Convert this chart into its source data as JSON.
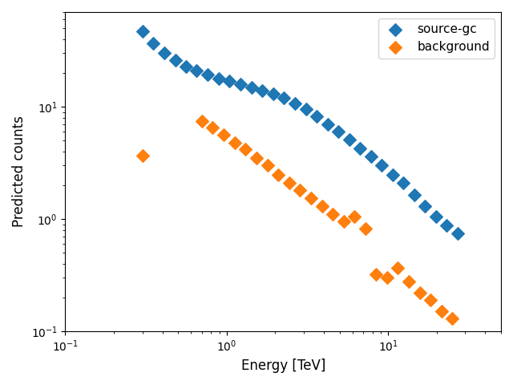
{
  "title": "",
  "xlabel": "Energy [TeV]",
  "ylabel": "Predicted counts",
  "source_gc_color": "#1f77b4",
  "background_color": "#ff7f0e",
  "source_gc_label": "source-gc",
  "background_label": "background",
  "marker": "D",
  "markersize": 4,
  "source_gc_x": [
    0.3,
    0.35,
    0.41,
    0.48,
    0.56,
    0.65,
    0.76,
    0.89,
    1.04,
    1.22,
    1.42,
    1.66,
    1.94,
    2.26,
    2.64,
    3.09,
    3.6,
    4.21,
    4.91,
    5.74,
    6.7,
    7.82,
    9.13,
    10.66,
    12.45,
    14.53,
    16.96,
    19.79,
    23.1,
    26.95
  ],
  "source_gc_y": [
    47.0,
    37.0,
    30.0,
    26.0,
    23.0,
    21.0,
    19.5,
    18.0,
    17.0,
    16.0,
    15.0,
    14.0,
    13.0,
    12.0,
    10.8,
    9.5,
    8.2,
    7.0,
    6.0,
    5.1,
    4.3,
    3.6,
    3.0,
    2.5,
    2.1,
    1.65,
    1.3,
    1.05,
    0.88,
    0.75
  ],
  "background_x": [
    0.3,
    0.7,
    0.82,
    0.96,
    1.12,
    1.31,
    1.53,
    1.79,
    2.09,
    2.44,
    2.85,
    3.33,
    3.89,
    4.54,
    5.3,
    6.19,
    7.23,
    8.44,
    9.85,
    11.5,
    13.42,
    15.67,
    18.29,
    21.35,
    24.92
  ],
  "background_y": [
    3.7,
    7.5,
    6.5,
    5.6,
    4.8,
    4.2,
    3.5,
    3.0,
    2.5,
    2.1,
    1.8,
    1.55,
    1.3,
    1.1,
    0.95,
    1.05,
    0.82,
    0.32,
    0.3,
    0.37,
    0.28,
    0.22,
    0.19,
    0.15,
    0.13
  ],
  "figsize": [
    6.4,
    4.8
  ],
  "dpi": 100,
  "xlim": [
    0.1,
    50
  ],
  "ylim": [
    0.1,
    70
  ],
  "legend_fontsize": 11,
  "axis_fontsize": 12
}
